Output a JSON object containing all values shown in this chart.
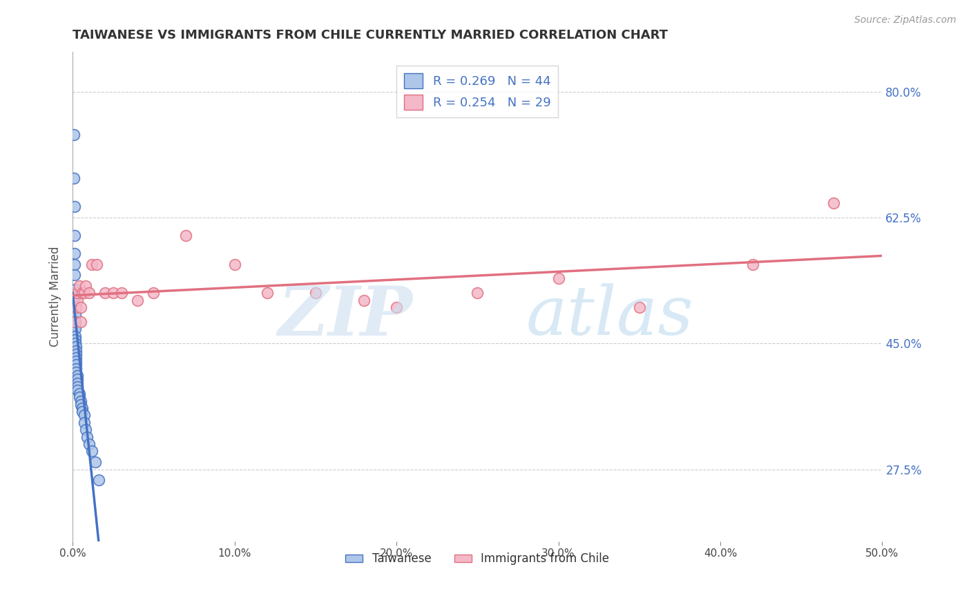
{
  "title": "TAIWANESE VS IMMIGRANTS FROM CHILE CURRENTLY MARRIED CORRELATION CHART",
  "source": "Source: ZipAtlas.com",
  "ylabel": "Currently Married",
  "xlim": [
    0.0,
    0.5
  ],
  "ylim": [
    0.175,
    0.855
  ],
  "xtick_vals": [
    0.0,
    0.1,
    0.2,
    0.3,
    0.4,
    0.5
  ],
  "xtick_labels": [
    "0.0%",
    "10.0%",
    "20.0%",
    "30.0%",
    "40.0%",
    "50.0%"
  ],
  "ytick_values": [
    0.275,
    0.45,
    0.625,
    0.8
  ],
  "ytick_labels": [
    "27.5%",
    "45.0%",
    "62.5%",
    "80.0%"
  ],
  "grid_color": "#cccccc",
  "background_color": "#ffffff",
  "blue_color": "#aec6e8",
  "blue_edge_color": "#4472c4",
  "pink_color": "#f4b8c8",
  "pink_edge_color": "#e07080",
  "blue_label": "Taiwanese",
  "pink_label": "Immigrants from Chile",
  "blue_R": 0.269,
  "blue_N": 44,
  "pink_R": 0.254,
  "pink_N": 29,
  "taiwanese_x": [
    0.0008,
    0.0008,
    0.001,
    0.001,
    0.0012,
    0.0012,
    0.0012,
    0.0015,
    0.0015,
    0.0015,
    0.0015,
    0.0017,
    0.0017,
    0.0017,
    0.0017,
    0.0018,
    0.0018,
    0.002,
    0.002,
    0.002,
    0.002,
    0.002,
    0.0022,
    0.0022,
    0.0022,
    0.003,
    0.003,
    0.003,
    0.003,
    0.003,
    0.004,
    0.004,
    0.005,
    0.005,
    0.006,
    0.006,
    0.007,
    0.007,
    0.008,
    0.009,
    0.01,
    0.012,
    0.014,
    0.016
  ],
  "taiwanese_y": [
    0.74,
    0.68,
    0.64,
    0.6,
    0.575,
    0.56,
    0.545,
    0.525,
    0.515,
    0.5,
    0.49,
    0.48,
    0.475,
    0.47,
    0.46,
    0.455,
    0.45,
    0.445,
    0.44,
    0.435,
    0.43,
    0.425,
    0.42,
    0.415,
    0.41,
    0.405,
    0.4,
    0.395,
    0.39,
    0.385,
    0.38,
    0.375,
    0.37,
    0.365,
    0.36,
    0.355,
    0.35,
    0.34,
    0.33,
    0.32,
    0.31,
    0.3,
    0.285,
    0.26
  ],
  "chile_x": [
    0.001,
    0.002,
    0.003,
    0.003,
    0.004,
    0.005,
    0.005,
    0.006,
    0.007,
    0.008,
    0.01,
    0.012,
    0.015,
    0.02,
    0.025,
    0.03,
    0.04,
    0.05,
    0.07,
    0.1,
    0.12,
    0.15,
    0.18,
    0.2,
    0.25,
    0.3,
    0.35,
    0.42,
    0.47
  ],
  "chile_y": [
    0.48,
    0.5,
    0.51,
    0.52,
    0.53,
    0.5,
    0.48,
    0.52,
    0.52,
    0.53,
    0.52,
    0.56,
    0.56,
    0.52,
    0.52,
    0.52,
    0.51,
    0.52,
    0.6,
    0.56,
    0.52,
    0.52,
    0.51,
    0.5,
    0.52,
    0.54,
    0.5,
    0.56,
    0.645
  ]
}
